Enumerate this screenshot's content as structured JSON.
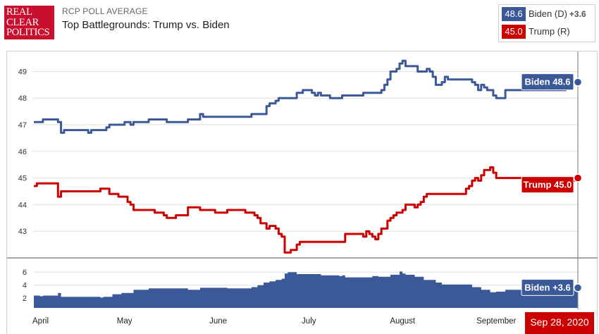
{
  "logo": {
    "line1": "REAL",
    "line2": "CLEAR",
    "line3": "POLITICS"
  },
  "header": {
    "eyebrow": "RCP POLL AVERAGE",
    "title": "Top Battlegrounds: Trump vs. Biden"
  },
  "legend": [
    {
      "value": "48.6",
      "name": "Biden (D)",
      "spread": "+3.6",
      "color": "#3b5998"
    },
    {
      "value": "45.0",
      "name": "Trump (R)",
      "color": "#cc0000"
    }
  ],
  "colors": {
    "biden": "#3b5998",
    "trump": "#cc0000",
    "spread": "#3b5998",
    "date_badge": "#cc0000"
  },
  "chart_data": {
    "type": "line",
    "title": "Top Battlegrounds: Trump vs. Biden",
    "subtitle": "RCP POLL AVERAGE",
    "xlim": [
      "2020-04-01",
      "2020-09-28"
    ],
    "x_ticks": [
      {
        "date": "2020-04-01",
        "label": "April"
      },
      {
        "date": "2020-05-01",
        "label": "May"
      },
      {
        "date": "2020-06-01",
        "label": "June"
      },
      {
        "date": "2020-07-01",
        "label": "July"
      },
      {
        "date": "2020-08-01",
        "label": "August"
      },
      {
        "date": "2020-09-01",
        "label": "September"
      }
    ],
    "ylim": [
      42,
      49.7
    ],
    "y_ticks": [
      43,
      44,
      45,
      46,
      47,
      48,
      49
    ],
    "grid": true,
    "series": [
      {
        "name": "Biden (D)",
        "current_label": "Biden 48.6",
        "points": [
          [
            "2020-04-01",
            47.1
          ],
          [
            "2020-04-03",
            47.1
          ],
          [
            "2020-04-04",
            47.2
          ],
          [
            "2020-04-08",
            47.2
          ],
          [
            "2020-04-09",
            47.1
          ],
          [
            "2020-04-10",
            46.7
          ],
          [
            "2020-04-11",
            46.8
          ],
          [
            "2020-04-18",
            46.8
          ],
          [
            "2020-04-19",
            46.7
          ],
          [
            "2020-04-20",
            46.8
          ],
          [
            "2020-04-24",
            46.8
          ],
          [
            "2020-04-25",
            46.9
          ],
          [
            "2020-04-26",
            47.0
          ],
          [
            "2020-04-30",
            47.0
          ],
          [
            "2020-05-01",
            47.1
          ],
          [
            "2020-05-02",
            47.1
          ],
          [
            "2020-05-03",
            47.0
          ],
          [
            "2020-05-04",
            47.1
          ],
          [
            "2020-05-08",
            47.1
          ],
          [
            "2020-05-09",
            47.2
          ],
          [
            "2020-05-14",
            47.2
          ],
          [
            "2020-05-15",
            47.1
          ],
          [
            "2020-05-21",
            47.1
          ],
          [
            "2020-05-22",
            47.2
          ],
          [
            "2020-05-25",
            47.2
          ],
          [
            "2020-05-26",
            47.4
          ],
          [
            "2020-05-27",
            47.3
          ],
          [
            "2020-06-11",
            47.3
          ],
          [
            "2020-06-12",
            47.4
          ],
          [
            "2020-06-15",
            47.4
          ],
          [
            "2020-06-17",
            47.7
          ],
          [
            "2020-06-18",
            47.8
          ],
          [
            "2020-06-19",
            47.8
          ],
          [
            "2020-06-20",
            47.9
          ],
          [
            "2020-06-21",
            48.0
          ],
          [
            "2020-06-26",
            48.0
          ],
          [
            "2020-06-27",
            48.2
          ],
          [
            "2020-06-28",
            48.2
          ],
          [
            "2020-06-29",
            48.3
          ],
          [
            "2020-07-01",
            48.3
          ],
          [
            "2020-07-02",
            48.2
          ],
          [
            "2020-07-03",
            48.1
          ],
          [
            "2020-07-04",
            48.2
          ],
          [
            "2020-07-05",
            48.1
          ],
          [
            "2020-07-07",
            48.1
          ],
          [
            "2020-07-08",
            48.0
          ],
          [
            "2020-07-11",
            48.0
          ],
          [
            "2020-07-12",
            48.1
          ],
          [
            "2020-07-18",
            48.1
          ],
          [
            "2020-07-19",
            48.2
          ],
          [
            "2020-07-24",
            48.2
          ],
          [
            "2020-07-25",
            48.3
          ],
          [
            "2020-07-26",
            48.5
          ],
          [
            "2020-07-27",
            48.7
          ],
          [
            "2020-07-28",
            49.0
          ],
          [
            "2020-07-29",
            49.0
          ],
          [
            "2020-07-30",
            49.1
          ],
          [
            "2020-07-31",
            49.3
          ],
          [
            "2020-08-01",
            49.4
          ],
          [
            "2020-08-02",
            49.2
          ],
          [
            "2020-08-05",
            49.2
          ],
          [
            "2020-08-06",
            49.0
          ],
          [
            "2020-08-08",
            49.0
          ],
          [
            "2020-08-09",
            49.1
          ],
          [
            "2020-08-10",
            49.0
          ],
          [
            "2020-08-11",
            48.8
          ],
          [
            "2020-08-12",
            48.5
          ],
          [
            "2020-08-13",
            48.5
          ],
          [
            "2020-08-14",
            48.6
          ],
          [
            "2020-08-15",
            48.8
          ],
          [
            "2020-08-16",
            48.7
          ],
          [
            "2020-08-23",
            48.7
          ],
          [
            "2020-08-24",
            48.6
          ],
          [
            "2020-08-25",
            48.5
          ],
          [
            "2020-08-26",
            48.3
          ],
          [
            "2020-08-27",
            48.5
          ],
          [
            "2020-08-28",
            48.4
          ],
          [
            "2020-08-29",
            48.3
          ],
          [
            "2020-08-30",
            48.3
          ],
          [
            "2020-08-31",
            48.1
          ],
          [
            "2020-09-01",
            48.0
          ],
          [
            "2020-09-03",
            48.0
          ],
          [
            "2020-09-04",
            48.3
          ],
          [
            "2020-09-05",
            48.3
          ],
          [
            "2020-09-24",
            48.5
          ],
          [
            "2020-09-25",
            48.5
          ],
          [
            "2020-09-26",
            48.6
          ],
          [
            "2020-09-28",
            48.6
          ]
        ]
      },
      {
        "name": "Trump (R)",
        "current_label": "Trump 45.0",
        "points": [
          [
            "2020-04-01",
            44.7
          ],
          [
            "2020-04-02",
            44.8
          ],
          [
            "2020-04-08",
            44.8
          ],
          [
            "2020-04-09",
            44.3
          ],
          [
            "2020-04-10",
            44.5
          ],
          [
            "2020-04-22",
            44.5
          ],
          [
            "2020-04-23",
            44.6
          ],
          [
            "2020-04-25",
            44.6
          ],
          [
            "2020-04-26",
            44.4
          ],
          [
            "2020-04-28",
            44.4
          ],
          [
            "2020-04-29",
            44.3
          ],
          [
            "2020-05-01",
            44.3
          ],
          [
            "2020-05-02",
            44.1
          ],
          [
            "2020-05-03",
            44.0
          ],
          [
            "2020-05-04",
            43.8
          ],
          [
            "2020-05-10",
            43.8
          ],
          [
            "2020-05-11",
            43.7
          ],
          [
            "2020-05-13",
            43.7
          ],
          [
            "2020-05-14",
            43.6
          ],
          [
            "2020-05-15",
            43.5
          ],
          [
            "2020-05-17",
            43.5
          ],
          [
            "2020-05-18",
            43.6
          ],
          [
            "2020-05-21",
            43.6
          ],
          [
            "2020-05-22",
            43.9
          ],
          [
            "2020-05-25",
            43.9
          ],
          [
            "2020-05-26",
            43.8
          ],
          [
            "2020-05-30",
            43.8
          ],
          [
            "2020-05-31",
            43.7
          ],
          [
            "2020-06-03",
            43.7
          ],
          [
            "2020-06-04",
            43.8
          ],
          [
            "2020-06-09",
            43.8
          ],
          [
            "2020-06-10",
            43.7
          ],
          [
            "2020-06-12",
            43.7
          ],
          [
            "2020-06-13",
            43.6
          ],
          [
            "2020-06-14",
            43.5
          ],
          [
            "2020-06-15",
            43.3
          ],
          [
            "2020-06-16",
            43.3
          ],
          [
            "2020-06-17",
            43.1
          ],
          [
            "2020-06-18",
            43.2
          ],
          [
            "2020-06-19",
            43.2
          ],
          [
            "2020-06-20",
            43.1
          ],
          [
            "2020-06-21",
            42.9
          ],
          [
            "2020-06-22",
            42.8
          ],
          [
            "2020-06-23",
            42.2
          ],
          [
            "2020-06-24",
            42.2
          ],
          [
            "2020-06-25",
            42.3
          ],
          [
            "2020-06-26",
            42.3
          ],
          [
            "2020-06-27",
            42.5
          ],
          [
            "2020-06-28",
            42.6
          ],
          [
            "2020-07-12",
            42.6
          ],
          [
            "2020-07-13",
            42.9
          ],
          [
            "2020-07-18",
            42.9
          ],
          [
            "2020-07-19",
            42.8
          ],
          [
            "2020-07-20",
            43.0
          ],
          [
            "2020-07-21",
            42.9
          ],
          [
            "2020-07-22",
            42.8
          ],
          [
            "2020-07-23",
            42.7
          ],
          [
            "2020-07-24",
            42.9
          ],
          [
            "2020-07-25",
            43.1
          ],
          [
            "2020-07-26",
            43.1
          ],
          [
            "2020-07-27",
            43.4
          ],
          [
            "2020-07-28",
            43.5
          ],
          [
            "2020-07-29",
            43.6
          ],
          [
            "2020-07-30",
            43.7
          ],
          [
            "2020-07-31",
            43.7
          ],
          [
            "2020-08-01",
            43.8
          ],
          [
            "2020-08-02",
            44.0
          ],
          [
            "2020-08-04",
            44.0
          ],
          [
            "2020-08-05",
            43.9
          ],
          [
            "2020-08-06",
            44.0
          ],
          [
            "2020-08-07",
            44.1
          ],
          [
            "2020-08-08",
            44.3
          ],
          [
            "2020-08-09",
            44.4
          ],
          [
            "2020-08-21",
            44.4
          ],
          [
            "2020-08-22",
            44.6
          ],
          [
            "2020-08-23",
            44.7
          ],
          [
            "2020-08-24",
            44.9
          ],
          [
            "2020-08-25",
            45.0
          ],
          [
            "2020-08-26",
            44.9
          ],
          [
            "2020-08-27",
            45.1
          ],
          [
            "2020-08-28",
            45.3
          ],
          [
            "2020-08-29",
            45.3
          ],
          [
            "2020-08-30",
            45.4
          ],
          [
            "2020-08-31",
            45.2
          ],
          [
            "2020-09-01",
            45.0
          ],
          [
            "2020-09-20",
            44.7
          ],
          [
            "2020-09-21",
            44.9
          ],
          [
            "2020-09-22",
            44.9
          ],
          [
            "2020-09-23",
            45.0
          ],
          [
            "2020-09-24",
            45.0
          ],
          [
            "2020-09-25",
            44.9
          ],
          [
            "2020-09-26",
            44.9
          ],
          [
            "2020-09-27",
            45.0
          ],
          [
            "2020-09-28",
            45.0
          ]
        ]
      }
    ],
    "spread_panel": {
      "type": "area",
      "name": "Biden",
      "current_label": "Biden +3.6",
      "ylim": [
        0.5,
        7
      ],
      "y_ticks": [
        2,
        4,
        6
      ],
      "points": [
        [
          "2020-04-01",
          2.4
        ],
        [
          "2020-04-03",
          2.3
        ],
        [
          "2020-04-04",
          2.4
        ],
        [
          "2020-04-08",
          2.4
        ],
        [
          "2020-04-09",
          2.8
        ],
        [
          "2020-04-10",
          2.2
        ],
        [
          "2020-04-22",
          2.2
        ],
        [
          "2020-04-23",
          2.1
        ],
        [
          "2020-04-24",
          2.2
        ],
        [
          "2020-04-27",
          2.6
        ],
        [
          "2020-04-30",
          2.8
        ],
        [
          "2020-05-04",
          3.3
        ],
        [
          "2020-05-08",
          3.3
        ],
        [
          "2020-05-09",
          3.5
        ],
        [
          "2020-05-21",
          3.5
        ],
        [
          "2020-05-22",
          3.3
        ],
        [
          "2020-05-26",
          3.6
        ],
        [
          "2020-06-03",
          3.6
        ],
        [
          "2020-06-04",
          3.5
        ],
        [
          "2020-06-09",
          3.5
        ],
        [
          "2020-06-12",
          3.7
        ],
        [
          "2020-06-14",
          4.0
        ],
        [
          "2020-06-16",
          4.4
        ],
        [
          "2020-06-18",
          4.6
        ],
        [
          "2020-06-20",
          4.8
        ],
        [
          "2020-06-22",
          5.0
        ],
        [
          "2020-06-23",
          5.8
        ],
        [
          "2020-06-24",
          6.0
        ],
        [
          "2020-06-27",
          5.7
        ],
        [
          "2020-07-01",
          5.7
        ],
        [
          "2020-07-05",
          5.5
        ],
        [
          "2020-07-11",
          5.4
        ],
        [
          "2020-07-12",
          5.5
        ],
        [
          "2020-07-13",
          5.2
        ],
        [
          "2020-07-18",
          5.2
        ],
        [
          "2020-07-22",
          5.4
        ],
        [
          "2020-07-24",
          5.3
        ],
        [
          "2020-07-27",
          5.3
        ],
        [
          "2020-07-28",
          5.6
        ],
        [
          "2020-07-31",
          6.1
        ],
        [
          "2020-08-01",
          5.8
        ],
        [
          "2020-08-02",
          5.6
        ],
        [
          "2020-08-05",
          5.3
        ],
        [
          "2020-08-08",
          4.8
        ],
        [
          "2020-08-12",
          4.4
        ],
        [
          "2020-08-14",
          4.1
        ],
        [
          "2020-08-23",
          4.1
        ],
        [
          "2020-08-24",
          3.7
        ],
        [
          "2020-08-27",
          3.3
        ],
        [
          "2020-08-30",
          2.9
        ],
        [
          "2020-08-31",
          2.9
        ],
        [
          "2020-09-01",
          3.0
        ],
        [
          "2020-09-04",
          3.3
        ],
        [
          "2020-09-12",
          3.5
        ],
        [
          "2020-09-20",
          3.8
        ],
        [
          "2020-09-22",
          3.8
        ],
        [
          "2020-09-24",
          3.5
        ],
        [
          "2020-09-28",
          3.6
        ]
      ]
    },
    "selected_date": "2020-09-28",
    "selected_date_label": "Sep 28, 2020"
  }
}
